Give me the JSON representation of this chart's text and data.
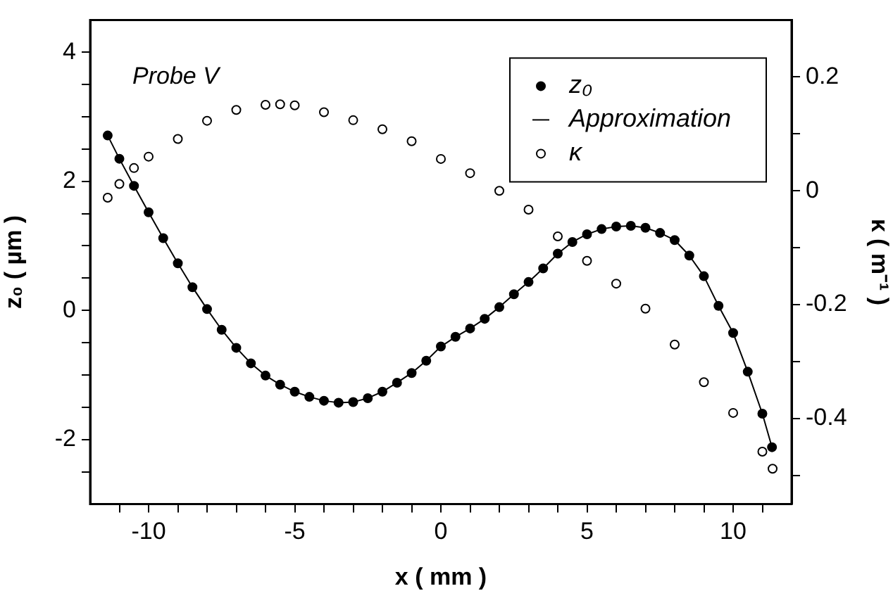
{
  "chart_data": {
    "type": "scatter",
    "xlabel": "x ( mm )",
    "ylabel": "z₀ ( µm )",
    "y2label": "κ ( m⁻¹ )",
    "annotations": [
      "Probe V"
    ],
    "xlim": [
      -12,
      12
    ],
    "ylim": [
      -3,
      4.5
    ],
    "y2lim": [
      -0.55,
      0.3
    ],
    "xticks": [
      {
        "value": -11,
        "label": null
      },
      -10,
      {
        "value": -9,
        "label": null
      },
      {
        "value": -8,
        "label": null
      },
      {
        "value": -7,
        "label": null
      },
      {
        "value": -6,
        "label": null
      },
      -5,
      {
        "value": -4,
        "label": null
      },
      {
        "value": -3,
        "label": null
      },
      {
        "value": -2,
        "label": null
      },
      {
        "value": -1,
        "label": null
      },
      0,
      {
        "value": 1,
        "label": null
      },
      {
        "value": 2,
        "label": null
      },
      {
        "value": 3,
        "label": null
      },
      {
        "value": 4,
        "label": null
      },
      5,
      {
        "value": 6,
        "label": null
      },
      {
        "value": 7,
        "label": null
      },
      {
        "value": 8,
        "label": null
      },
      {
        "value": 9,
        "label": null
      },
      10,
      {
        "value": 11,
        "label": null
      }
    ],
    "yticks": [
      {
        "value": -2.5,
        "label": null
      },
      -2,
      {
        "value": -1.5,
        "label": null
      },
      {
        "value": -1,
        "label": null
      },
      {
        "value": -0.5,
        "label": null
      },
      0,
      {
        "value": 0.5,
        "label": null
      },
      {
        "value": 1,
        "label": null
      },
      {
        "value": 1.5,
        "label": null
      },
      2,
      {
        "value": 2.5,
        "label": null
      },
      {
        "value": 3,
        "label": null
      },
      {
        "value": 3.5,
        "label": null
      },
      4
    ],
    "y2ticks": [
      {
        "value": -0.5,
        "label": null
      },
      -0.4,
      {
        "value": -0.3,
        "label": null
      },
      -0.2,
      {
        "value": -0.1,
        "label": null
      },
      0,
      {
        "value": 0.1,
        "label": null
      },
      0.2
    ],
    "legend": "top right",
    "grid": false,
    "x": [
      -11.4,
      -11,
      -10.5,
      -10,
      -9.5,
      -9,
      -8.5,
      -8,
      -7.5,
      -7,
      -6.5,
      -6,
      -5.5,
      -5,
      -4.5,
      -4,
      -3.5,
      -3,
      -2.5,
      -2,
      -1.5,
      -1,
      -0.5,
      0,
      0.5,
      1,
      1.5,
      2,
      2.5,
      3,
      3.5,
      4,
      4.5,
      5,
      5.5,
      6,
      6.5,
      7,
      7.5,
      8,
      8.5,
      9,
      9.5,
      10,
      10.5,
      11,
      11.33
    ],
    "series": [
      {
        "name": "z₀",
        "marker": "circle",
        "color": "#000000",
        "values": [
          2.71,
          2.35,
          1.93,
          1.52,
          1.12,
          0.73,
          0.36,
          0.02,
          -0.3,
          -0.58,
          -0.82,
          -1.01,
          -1.15,
          -1.26,
          -1.34,
          -1.4,
          -1.43,
          -1.42,
          -1.36,
          -1.26,
          -1.12,
          -0.97,
          -0.78,
          -0.56,
          -0.41,
          -0.28,
          -0.13,
          0.05,
          0.25,
          0.44,
          0.65,
          0.88,
          1.06,
          1.18,
          1.26,
          1.3,
          1.31,
          1.28,
          1.2,
          1.09,
          0.85,
          0.53,
          0.07,
          -0.35,
          -0.95,
          -1.6,
          -2.12
        ]
      },
      {
        "name": "Approximation",
        "type": "line",
        "marker": "none",
        "line_style": "solid",
        "color": "#000000",
        "values": [
          2.71,
          2.35,
          1.93,
          1.52,
          1.12,
          0.73,
          0.36,
          0.02,
          -0.3,
          -0.58,
          -0.82,
          -1.01,
          -1.15,
          -1.26,
          -1.34,
          -1.4,
          -1.43,
          -1.42,
          -1.36,
          -1.26,
          -1.12,
          -0.97,
          -0.78,
          -0.56,
          -0.41,
          -0.28,
          -0.13,
          0.05,
          0.25,
          0.44,
          0.65,
          0.88,
          1.06,
          1.18,
          1.26,
          1.3,
          1.31,
          1.28,
          1.2,
          1.09,
          0.85,
          0.53,
          0.07,
          -0.35,
          -0.95,
          -1.6,
          -2.12
        ]
      },
      {
        "name": "κ",
        "marker": "circle",
        "axis": "y2",
        "color": "#000000",
        "x": [
          -11.4,
          -11,
          -10.5,
          -10,
          -9,
          -8,
          -7,
          -6,
          -5.5,
          -5,
          -4,
          -3,
          -2,
          -1,
          0,
          1,
          2,
          3,
          4,
          5,
          6,
          7,
          8,
          9,
          10,
          11,
          11.35
        ],
        "values": [
          -0.012,
          0.012,
          0.04,
          0.06,
          0.091,
          0.123,
          0.142,
          0.151,
          0.152,
          0.15,
          0.138,
          0.124,
          0.108,
          0.087,
          0.056,
          0.031,
          0.0,
          -0.033,
          -0.08,
          -0.123,
          -0.163,
          -0.207,
          -0.27,
          -0.336,
          -0.39,
          -0.458,
          -0.488
        ]
      }
    ]
  }
}
